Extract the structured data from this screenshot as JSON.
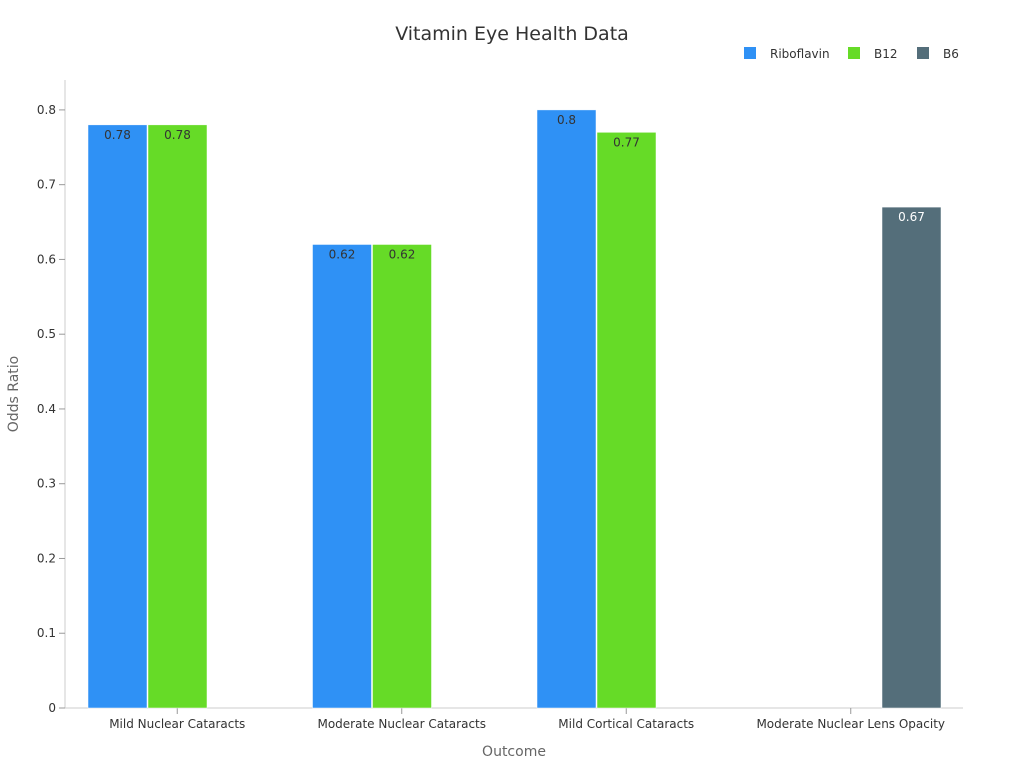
{
  "chart_data": {
    "type": "bar",
    "title": "Vitamin Eye Health Data",
    "xlabel": "Outcome",
    "ylabel": "Odds Ratio",
    "categories": [
      "Mild Nuclear Cataracts",
      "Moderate Nuclear Cataracts",
      "Mild Cortical Cataracts",
      "Moderate Nuclear Lens Opacity"
    ],
    "series": [
      {
        "name": "Riboflavin",
        "color": "#2f91f5",
        "label_color": "#333333",
        "values": [
          0.78,
          0.62,
          0.8,
          null
        ]
      },
      {
        "name": "B12",
        "color": "#66db27",
        "label_color": "#333333",
        "values": [
          0.78,
          0.62,
          0.77,
          null
        ]
      },
      {
        "name": "B6",
        "color": "#546e7a",
        "label_color": "#ffffff",
        "values": [
          null,
          null,
          null,
          0.67
        ]
      }
    ],
    "ylim": [
      0,
      0.84
    ],
    "yticks": [
      0,
      0.1,
      0.2,
      0.3,
      0.4,
      0.5,
      0.6,
      0.7,
      0.8
    ],
    "ytick_labels": [
      "0",
      "0.1",
      "0.2",
      "0.3",
      "0.4",
      "0.5",
      "0.6",
      "0.7",
      "0.8"
    ],
    "grid": false,
    "legend_position": "top-right"
  }
}
